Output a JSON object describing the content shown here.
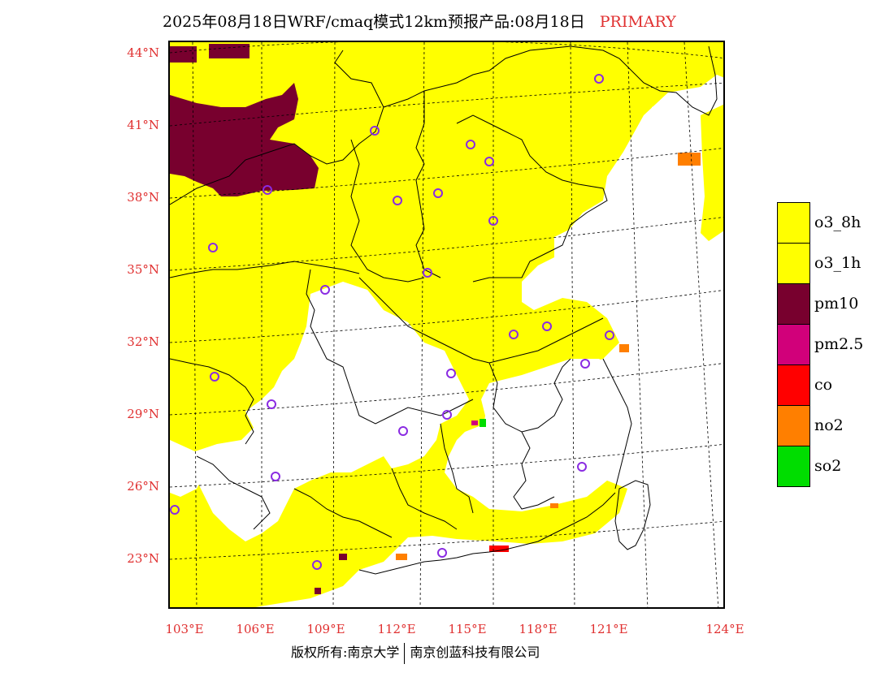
{
  "title": {
    "main": "2025年08月18日WRF/cmaq模式12km预报产品:08月18日",
    "tag": "PRIMARY"
  },
  "map": {
    "lat_labels": [
      "44°N",
      "41°N",
      "38°N",
      "35°N",
      "32°N",
      "29°N",
      "26°N",
      "23°N"
    ],
    "lon_labels": [
      "103°E",
      "106°E",
      "109°E",
      "112°E",
      "115°E",
      "118°E",
      "121°E",
      "124°E"
    ]
  },
  "legend": {
    "items": [
      {
        "label": "o3_8h",
        "color": "#ffff00"
      },
      {
        "label": "o3_1h",
        "color": "#ffff00"
      },
      {
        "label": "pm10",
        "color": "#78002e"
      },
      {
        "label": "pm2.5",
        "color": "#d1007a"
      },
      {
        "label": "co",
        "color": "#ff0000"
      },
      {
        "label": "no2",
        "color": "#ff7f00"
      },
      {
        "label": "so2",
        "color": "#00dd00"
      }
    ]
  },
  "footer": {
    "left": "版权所有:南京大学",
    "right": "南京创蓝科技有限公司"
  }
}
